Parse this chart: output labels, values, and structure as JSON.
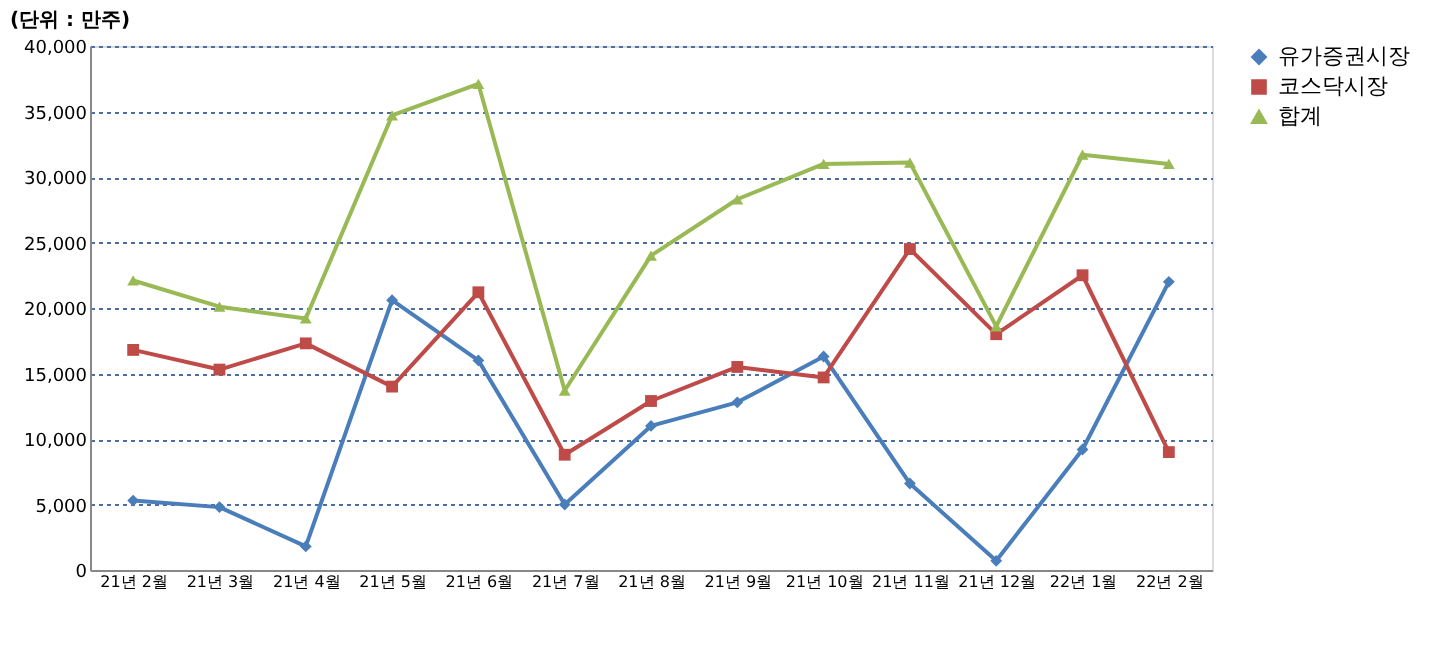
{
  "chart_data": {
    "type": "line",
    "ylabel": "(단위 : 만주)",
    "categories": [
      "21년 2월",
      "21년 3월",
      "21년 4월",
      "21년 5월",
      "21년 6월",
      "21년 7월",
      "21년 8월",
      "21년 9월",
      "21년 10월",
      "21년 11월",
      "21년 12월",
      "22년 1월",
      "22년 2월"
    ],
    "series": [
      {
        "name": "유가증권시장",
        "color": "#4a7ebb",
        "marker": "diamond",
        "values": [
          5300,
          4800,
          1800,
          20600,
          16000,
          5000,
          11000,
          12800,
          16300,
          6600,
          700,
          9200,
          22000
        ]
      },
      {
        "name": "코스닥시장",
        "color": "#be4b48",
        "marker": "square",
        "values": [
          16800,
          15300,
          17300,
          14000,
          21200,
          8800,
          12900,
          15500,
          14700,
          24500,
          18000,
          22500,
          9000
        ]
      },
      {
        "name": "합계",
        "color": "#98b954",
        "marker": "triangle",
        "values": [
          22100,
          20100,
          19200,
          34700,
          37100,
          13700,
          24000,
          28300,
          31000,
          31100,
          18600,
          31700,
          31000
        ]
      }
    ],
    "ylim": [
      0,
      40000
    ],
    "yticks": [
      0,
      {
        "value": 5000,
        "label": "5,000"
      },
      {
        "value": 10000,
        "label": "10,000"
      },
      {
        "value": 15000,
        "label": "15,000"
      },
      {
        "value": 20000,
        "label": "20,000"
      },
      {
        "value": 25000,
        "label": "25,000"
      },
      {
        "value": 30000,
        "label": "30,000"
      },
      {
        "value": 35000,
        "label": "35,000"
      },
      {
        "value": 40000,
        "label": "40,000"
      }
    ],
    "grid": "y",
    "legend": "right",
    "line_style": "solid"
  }
}
